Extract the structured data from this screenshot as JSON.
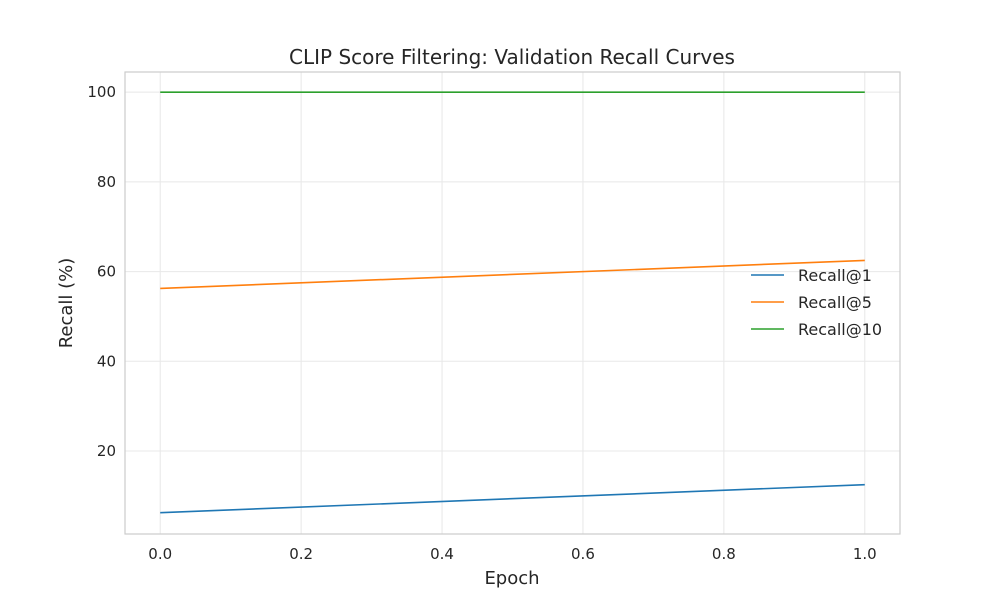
{
  "chart_data": {
    "type": "line",
    "title": "CLIP Score Filtering: Validation Recall Curves",
    "xlabel": "Epoch",
    "ylabel": "Recall (%)",
    "xlim": [
      -0.05,
      1.05
    ],
    "ylim": [
      1.5,
      104.5
    ],
    "xticks": [
      0.0,
      0.2,
      0.4,
      0.6,
      0.8,
      1.0
    ],
    "xtick_labels": [
      "0.0",
      "0.2",
      "0.4",
      "0.6",
      "0.8",
      "1.0"
    ],
    "yticks": [
      20,
      40,
      60,
      80,
      100
    ],
    "ytick_labels": [
      "20",
      "40",
      "60",
      "80",
      "100"
    ],
    "grid": true,
    "legend_position": "center-right",
    "x": [
      0.0,
      1.0
    ],
    "series": [
      {
        "name": "Recall@1",
        "color": "#1f77b4",
        "values": [
          6.25,
          12.5
        ]
      },
      {
        "name": "Recall@5",
        "color": "#ff7f0e",
        "values": [
          56.25,
          62.5
        ]
      },
      {
        "name": "Recall@10",
        "color": "#2ca02c",
        "values": [
          100.0,
          100.0
        ]
      }
    ]
  }
}
